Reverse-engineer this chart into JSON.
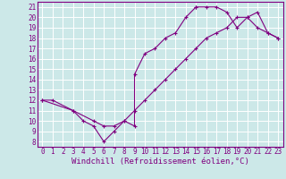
{
  "bg_color": "#cce8e8",
  "line_color": "#800080",
  "grid_color": "#ffffff",
  "xlabel": "Windchill (Refroidissement éolien,°C)",
  "ylabel_ticks": [
    8,
    9,
    10,
    11,
    12,
    13,
    14,
    15,
    16,
    17,
    18,
    19,
    20,
    21
  ],
  "xlabel_ticks": [
    0,
    1,
    2,
    3,
    4,
    5,
    6,
    7,
    8,
    9,
    10,
    11,
    12,
    13,
    14,
    15,
    16,
    17,
    18,
    19,
    20,
    21,
    22,
    23
  ],
  "xlim": [
    -0.5,
    23.5
  ],
  "ylim": [
    7.5,
    21.5
  ],
  "line1_x": [
    0,
    1,
    3,
    4,
    5,
    6,
    7,
    8,
    9,
    9,
    10,
    11,
    12,
    13,
    14,
    15,
    15,
    16,
    17,
    18,
    19,
    20,
    21,
    22,
    23
  ],
  "line1_y": [
    12,
    12,
    11,
    10,
    9.5,
    8,
    9,
    10,
    9.5,
    14.5,
    16.5,
    17,
    18,
    18.5,
    20,
    21,
    21,
    21,
    21,
    20.5,
    19,
    20,
    19,
    18.5,
    18
  ],
  "line2_x": [
    0,
    3,
    5,
    6,
    7,
    8,
    9,
    10,
    11,
    12,
    13,
    14,
    15,
    16,
    17,
    18,
    19,
    20,
    21,
    22,
    23
  ],
  "line2_y": [
    12,
    11,
    10,
    9.5,
    9.5,
    10,
    11,
    12,
    13,
    14,
    15,
    16,
    17,
    18,
    18.5,
    19,
    20,
    20,
    20.5,
    18.5,
    18
  ],
  "font_size_xlabel": 6.5,
  "font_size_ytick": 5.5,
  "font_size_xtick": 5.5,
  "marker_size": 2.5,
  "linewidth": 0.8
}
